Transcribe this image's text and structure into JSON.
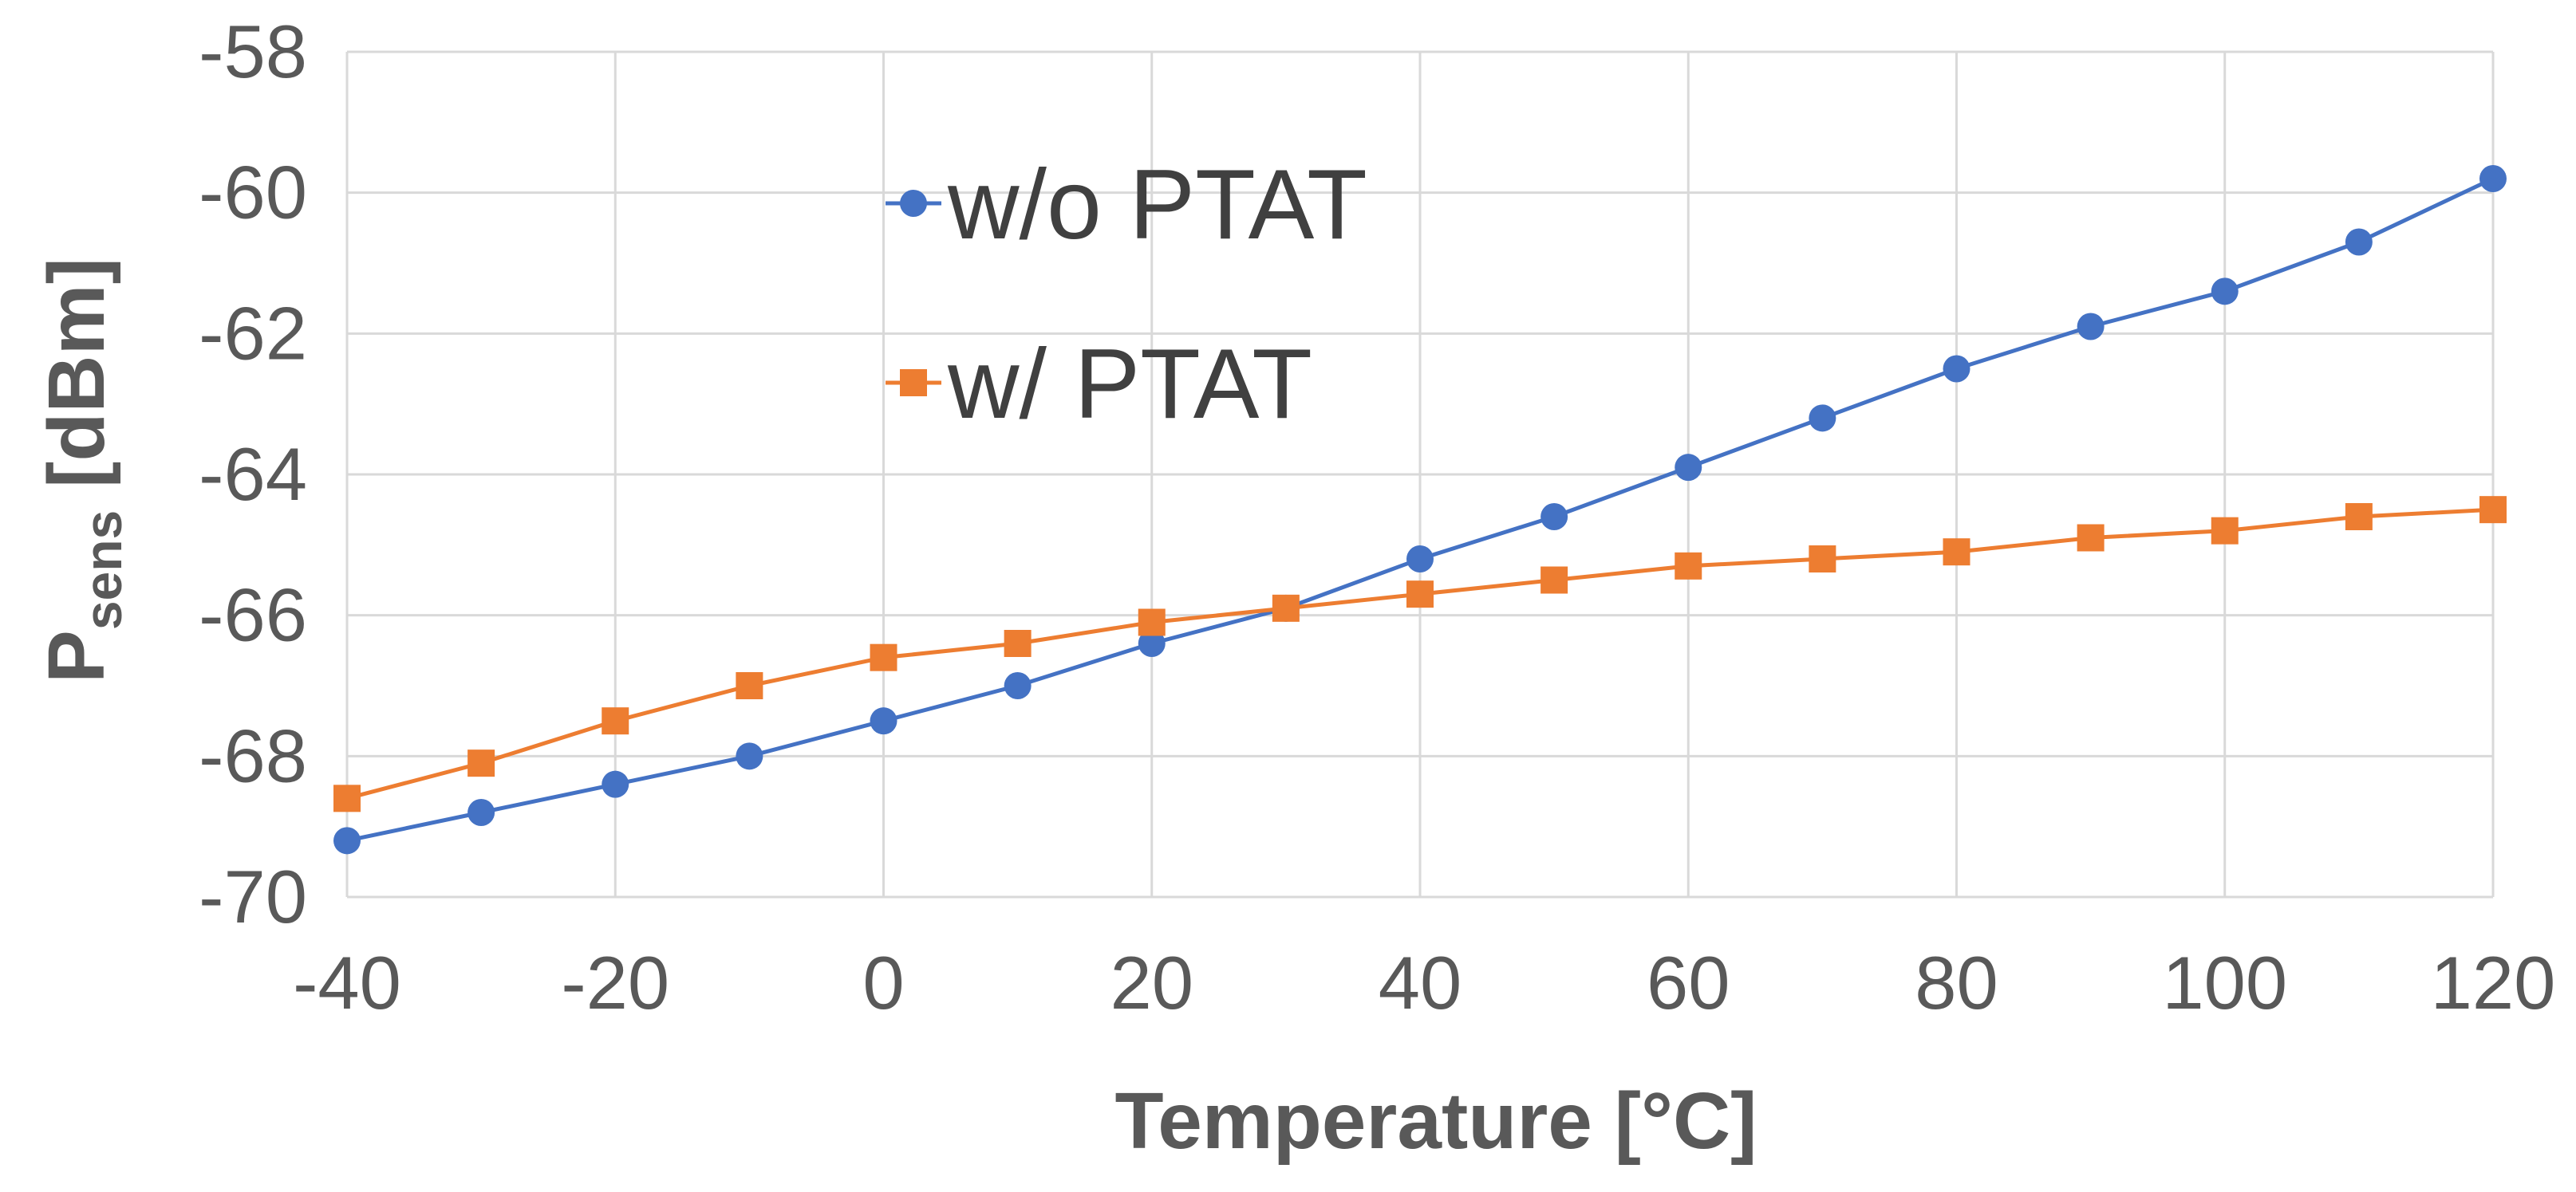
{
  "chart_data": {
    "type": "line",
    "xlabel": "Temperature [°C]",
    "ylabel": {
      "main": "P",
      "subscript": "sens",
      "suffix": " [dBm]"
    },
    "x": [
      -40,
      -30,
      -20,
      -10,
      0,
      10,
      20,
      30,
      40,
      50,
      60,
      70,
      80,
      90,
      100,
      110,
      120
    ],
    "xlim": [
      -40,
      120
    ],
    "ylim": [
      -70,
      -58
    ],
    "x_ticks": [
      -40,
      -20,
      0,
      20,
      40,
      60,
      80,
      100,
      120
    ],
    "y_ticks": [
      -70,
      -68,
      -66,
      -64,
      -62,
      -60,
      -58
    ],
    "grid": true,
    "legend_position": "upper-left-center",
    "series": [
      {
        "name": "w/o PTAT",
        "color": "#4472C4",
        "marker": "circle",
        "values": [
          -69.2,
          -68.8,
          -68.4,
          -68.0,
          -67.5,
          -67.0,
          -66.4,
          -65.9,
          -65.2,
          -64.6,
          -63.9,
          -63.2,
          -62.5,
          -61.9,
          -61.4,
          -60.7,
          -59.8
        ]
      },
      {
        "name": "w/ PTAT",
        "color": "#ED7D31",
        "marker": "square",
        "values": [
          -68.6,
          -68.1,
          -67.5,
          -67.0,
          -66.6,
          -66.4,
          -66.1,
          -65.9,
          -65.7,
          -65.5,
          -65.3,
          -65.2,
          -65.1,
          -64.9,
          -64.8,
          -64.6,
          -64.5
        ]
      }
    ]
  }
}
